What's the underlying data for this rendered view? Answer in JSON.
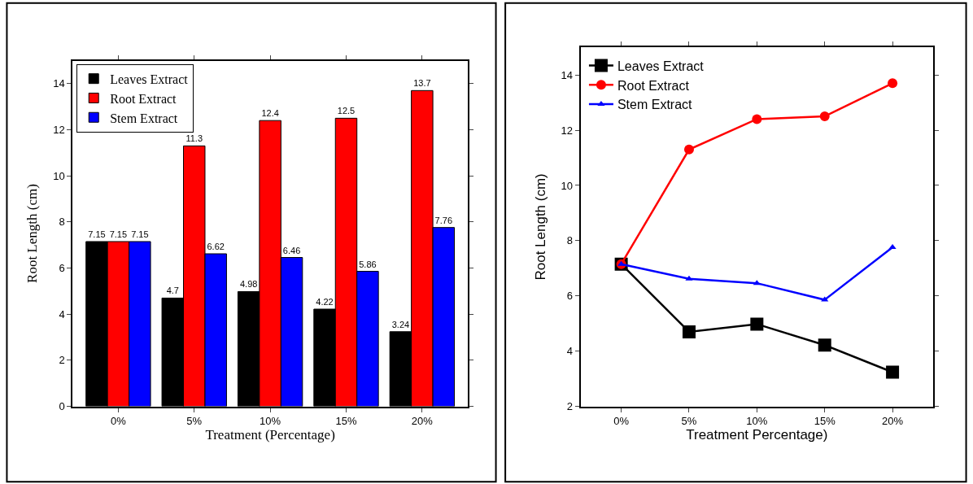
{
  "chart_data": [
    {
      "type": "bar",
      "categories": [
        "0%",
        "5%",
        "10%",
        "15%",
        "20%"
      ],
      "xlabel": "Treatment (Percentage)",
      "ylabel": "Root Length (cm)",
      "ylim": [
        0,
        15
      ],
      "yticks": [
        0,
        2,
        4,
        6,
        8,
        10,
        12,
        14
      ],
      "legend": "top left",
      "data_labels": true,
      "series": [
        {
          "name": "Leaves Extract",
          "color": "#000000",
          "values": [
            7.15,
            4.7,
            4.98,
            4.22,
            3.24
          ]
        },
        {
          "name": "Root Extract",
          "color": "#ff0000",
          "values": [
            7.15,
            11.3,
            12.4,
            12.5,
            13.7
          ]
        },
        {
          "name": "Stem Extract",
          "color": "#0000ff",
          "values": [
            7.15,
            6.62,
            6.46,
            5.86,
            7.76
          ]
        }
      ]
    },
    {
      "type": "line",
      "categories": [
        "0%",
        "5%",
        "10%",
        "15%",
        "20%"
      ],
      "xlabel": "Treatment Percentage)",
      "ylabel": "Root Length (cm)",
      "ylim": [
        2,
        15
      ],
      "yticks": [
        2,
        4,
        6,
        8,
        10,
        12,
        14
      ],
      "legend": "top left",
      "line_style": "solid",
      "series": [
        {
          "name": "Leaves Extract",
          "color": "#000000",
          "marker": "square",
          "values": [
            7.15,
            4.7,
            4.98,
            4.22,
            3.24
          ]
        },
        {
          "name": "Root Extract",
          "color": "#ff0000",
          "marker": "circle",
          "values": [
            7.15,
            11.3,
            12.4,
            12.5,
            13.7
          ]
        },
        {
          "name": "Stem Extract",
          "color": "#0000ff",
          "marker": "triangle",
          "values": [
            7.15,
            6.62,
            6.46,
            5.86,
            7.76
          ]
        }
      ]
    }
  ]
}
